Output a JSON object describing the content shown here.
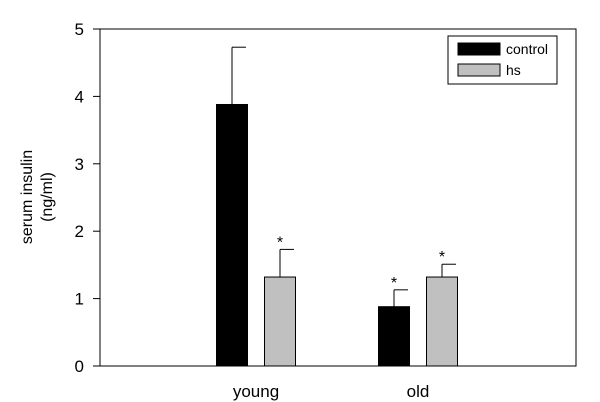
{
  "chart_data": {
    "type": "bar",
    "categories": [
      "young",
      "old"
    ],
    "series": [
      {
        "name": "control",
        "values": [
          3.88,
          0.88
        ],
        "errors": [
          0.85,
          0.25
        ],
        "significance": [
          "",
          "*"
        ],
        "color": "#000000"
      },
      {
        "name": "hs",
        "values": [
          1.32,
          1.32
        ],
        "errors": [
          0.41,
          0.19
        ],
        "significance": [
          "*",
          "*"
        ],
        "color": "#c0c0c0"
      }
    ],
    "ylabel_lines": [
      "serum insulin",
      "(ng/ml)"
    ],
    "ylim": [
      0,
      5
    ],
    "yticks": [
      0,
      1,
      2,
      3,
      4,
      5
    ],
    "grid": false,
    "legend_position": "top-right"
  }
}
